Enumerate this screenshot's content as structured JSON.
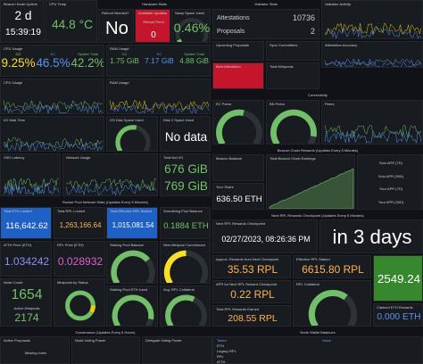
{
  "headers": [
    "Hardware Stats",
    "Rocket Pool Network Stats (Updates Every 5 Minutes)",
    "Governance (Updates Every 6 Hours)",
    "Validator Stats",
    "Connectivity",
    "Beacon Chain Rewards (Updates Every 5 Minutes)",
    "Next RPL Rewards Checkpoint (Updates Every 5 Minutes)",
    "Node Wallet Balances"
  ],
  "panels": [
    {
      "title": "Beacon Node Uptime",
      "items": [
        {
          "value": "2 d"
        },
        {
          "value": "15:39:19"
        }
      ]
    },
    {
      "title": "CPU Temp",
      "items": [
        {
          "value": "44.8 °C",
          "color": "#73bf69"
        }
      ]
    },
    {
      "title": "Reboot Needed?",
      "items": [
        {
          "value": "No"
        }
      ]
    },
    {
      "title": "Available Updates",
      "items": [
        {
          "label": "Reboot Pend"
        },
        {
          "value": "0"
        }
      ]
    },
    {
      "title": "Swap Space Used",
      "items": [
        {
          "value": "0.46%",
          "color": "#73bf69"
        }
      ]
    },
    {
      "title": "CPU Usage",
      "items": [
        {
          "label": "CC",
          "value": "9.25%",
          "color": "#fade2a"
        },
        {
          "label": "EC",
          "value": "46.5%",
          "color": "#5794f2"
        },
        {
          "label": "System Total",
          "value": "42.2%",
          "color": "#73bf69"
        }
      ]
    },
    {
      "title": "RAM Usage",
      "items": [
        {
          "label": "CC",
          "value": "1.75 GiB",
          "color": "#73bf69"
        },
        {
          "label": "EC",
          "value": "7.17 GiB",
          "color": "#5794f2"
        },
        {
          "label": "System Total",
          "value": "4.88 GiB",
          "color": "#73bf69"
        }
      ]
    },
    {
      "title": "CPU Usage",
      "items": []
    },
    {
      "title": "RAM Usage",
      "items": []
    },
    {
      "title": "I/O Wait Time",
      "items": []
    },
    {
      "title": "OS Disk Space Used",
      "items": []
    },
    {
      "title": "Disk 2 Space Used",
      "items": [
        {
          "value": "No data"
        }
      ]
    },
    {
      "title": "SSD Latency",
      "items": []
    },
    {
      "title": "Network Usage",
      "items": []
    },
    {
      "title": "Total Net I/O",
      "items": [
        {
          "value": "676 GiB",
          "color": "#73bf69"
        },
        {
          "value": "769 GiB",
          "color": "#73bf69"
        }
      ]
    },
    {
      "title": "Total ETH Locked",
      "items": [
        {
          "value": "116,642.62",
          "color": "#ffffff"
        }
      ]
    },
    {
      "title": "Total RPL Locked",
      "items": [
        {
          "value": "1,263,166.64",
          "color": "#ffb357"
        }
      ]
    },
    {
      "title": "Total Effective RPL Staked",
      "items": [
        {
          "value": "1,015,081.54",
          "color": "#ffffff"
        }
      ]
    },
    {
      "title": "Smoothing Pool Balance",
      "items": [
        {
          "value": "0.1884 ETH",
          "color": "#73bf69"
        }
      ]
    },
    {
      "title": "rETH Price (ETH)",
      "items": [
        {
          "value": "1.034242",
          "color": "#8f8ff5"
        }
      ]
    },
    {
      "title": "RPL Price (ETH)",
      "items": [
        {
          "value": "0.028932",
          "color": "#e05fd0"
        }
      ]
    },
    {
      "title": "Staking Pool Balance",
      "items": []
    },
    {
      "title": "New Minipool Commission",
      "items": []
    },
    {
      "title": "Node Count",
      "items": [
        {
          "value": "1654",
          "color": "#73bf69"
        },
        {
          "label": "Active Minipools",
          "value": "2174",
          "color": "#73bf69"
        }
      ]
    },
    {
      "title": "Minipools by Status",
      "items": []
    },
    {
      "title": "Staking Pool ETH Used",
      "items": []
    },
    {
      "title": "Avg. RPL Collateral",
      "items": []
    },
    {
      "title": "Active Proposals",
      "items": [
        {
          "label": "Missing votes"
        }
      ]
    },
    {
      "title": "Node Voting Power",
      "items": []
    },
    {
      "title": "Delegate Voting Power",
      "items": []
    },
    {
      "items": [
        {
          "label": "Attestations",
          "value": "10736"
        },
        {
          "label": "Proposals",
          "value": "2"
        }
      ]
    },
    {
      "title": "Validator Activity",
      "items": []
    },
    {
      "title": "Upcoming Proposals",
      "items": []
    },
    {
      "title": "Sync Committees",
      "items": []
    },
    {
      "title": "Attestation Accuracy",
      "items": []
    },
    {
      "title": "Best Attestation",
      "items": []
    },
    {
      "title": "Total Minipools",
      "items": []
    },
    {
      "title": "EC Peers",
      "items": []
    },
    {
      "title": "BN Peers",
      "items": []
    },
    {
      "title": "Peers",
      "items": []
    },
    {
      "title": "Beacon Balance",
      "items": []
    },
    {
      "title": "Your Share",
      "items": [
        {
          "value": "636.50 ETH",
          "color": "#ffffff"
        }
      ]
    },
    {
      "title": "Total Beacon Chain Earnings",
      "items": []
    },
    {
      "items": [
        {
          "label": "Solo APR (7D)"
        },
        {
          "label": "Solo APR (30D)"
        },
        {
          "label": "Your APR (7D)"
        },
        {
          "label": "Your APR (30D)"
        }
      ]
    },
    {
      "title": "Next RPL Rewards Checkpoint",
      "items": [
        {
          "value": "02/27/2023, 08:26:36 PM",
          "color": "#ffffff"
        }
      ]
    },
    {
      "items": [
        {
          "value": "in 3 days",
          "color": "#ffffff"
        }
      ]
    },
    {
      "title": "Approx. Rewards from Next Checkpoint",
      "items": [
        {
          "value": "35.53 RPL",
          "color": "#ffb357"
        }
      ]
    },
    {
      "title": "Effective RPL Staked",
      "items": [
        {
          "value": "6615.80 RPL",
          "color": "#ffb357"
        }
      ]
    },
    {
      "items": [
        {
          "value": "2549.24",
          "color": "#ffffff"
        }
      ]
    },
    {
      "title": "APR for Next RPL Reward Checkpoint",
      "items": [
        {
          "value": "0.22 RPL",
          "color": "#ffb357"
        }
      ]
    },
    {
      "title": "RPL Collateral",
      "items": []
    },
    {
      "title": "Total RPL Rewards Earned",
      "items": [
        {
          "value": "208.55 RPL",
          "color": "#ffb357"
        }
      ]
    },
    {
      "title": "Claimed ETH Rewards",
      "items": [
        {
          "value": "0.000 ETH",
          "color": "#5794f2"
        }
      ]
    }
  ],
  "table": {
    "columns": [
      "Token",
      "Value"
    ],
    "rows": [
      "ETH",
      "Legacy RPL",
      "RPL",
      "rETH"
    ]
  }
}
